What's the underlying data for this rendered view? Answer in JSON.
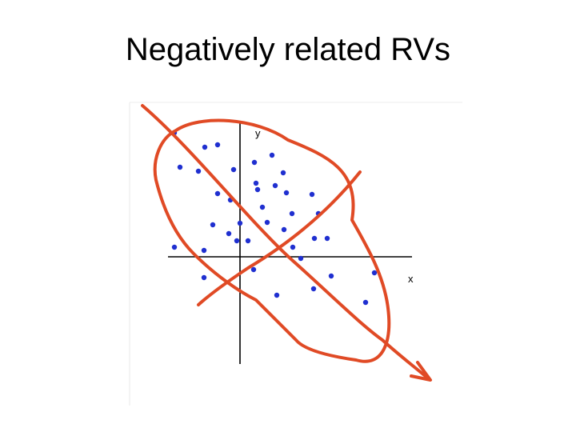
{
  "slide": {
    "title": "Negatively related RVs"
  },
  "diagram": {
    "x_axis_label": "x",
    "y_axis_label": "y",
    "point_color": "#1f2fd0",
    "annotation_color": "#e04a25",
    "axis_color": "#000000"
  }
}
